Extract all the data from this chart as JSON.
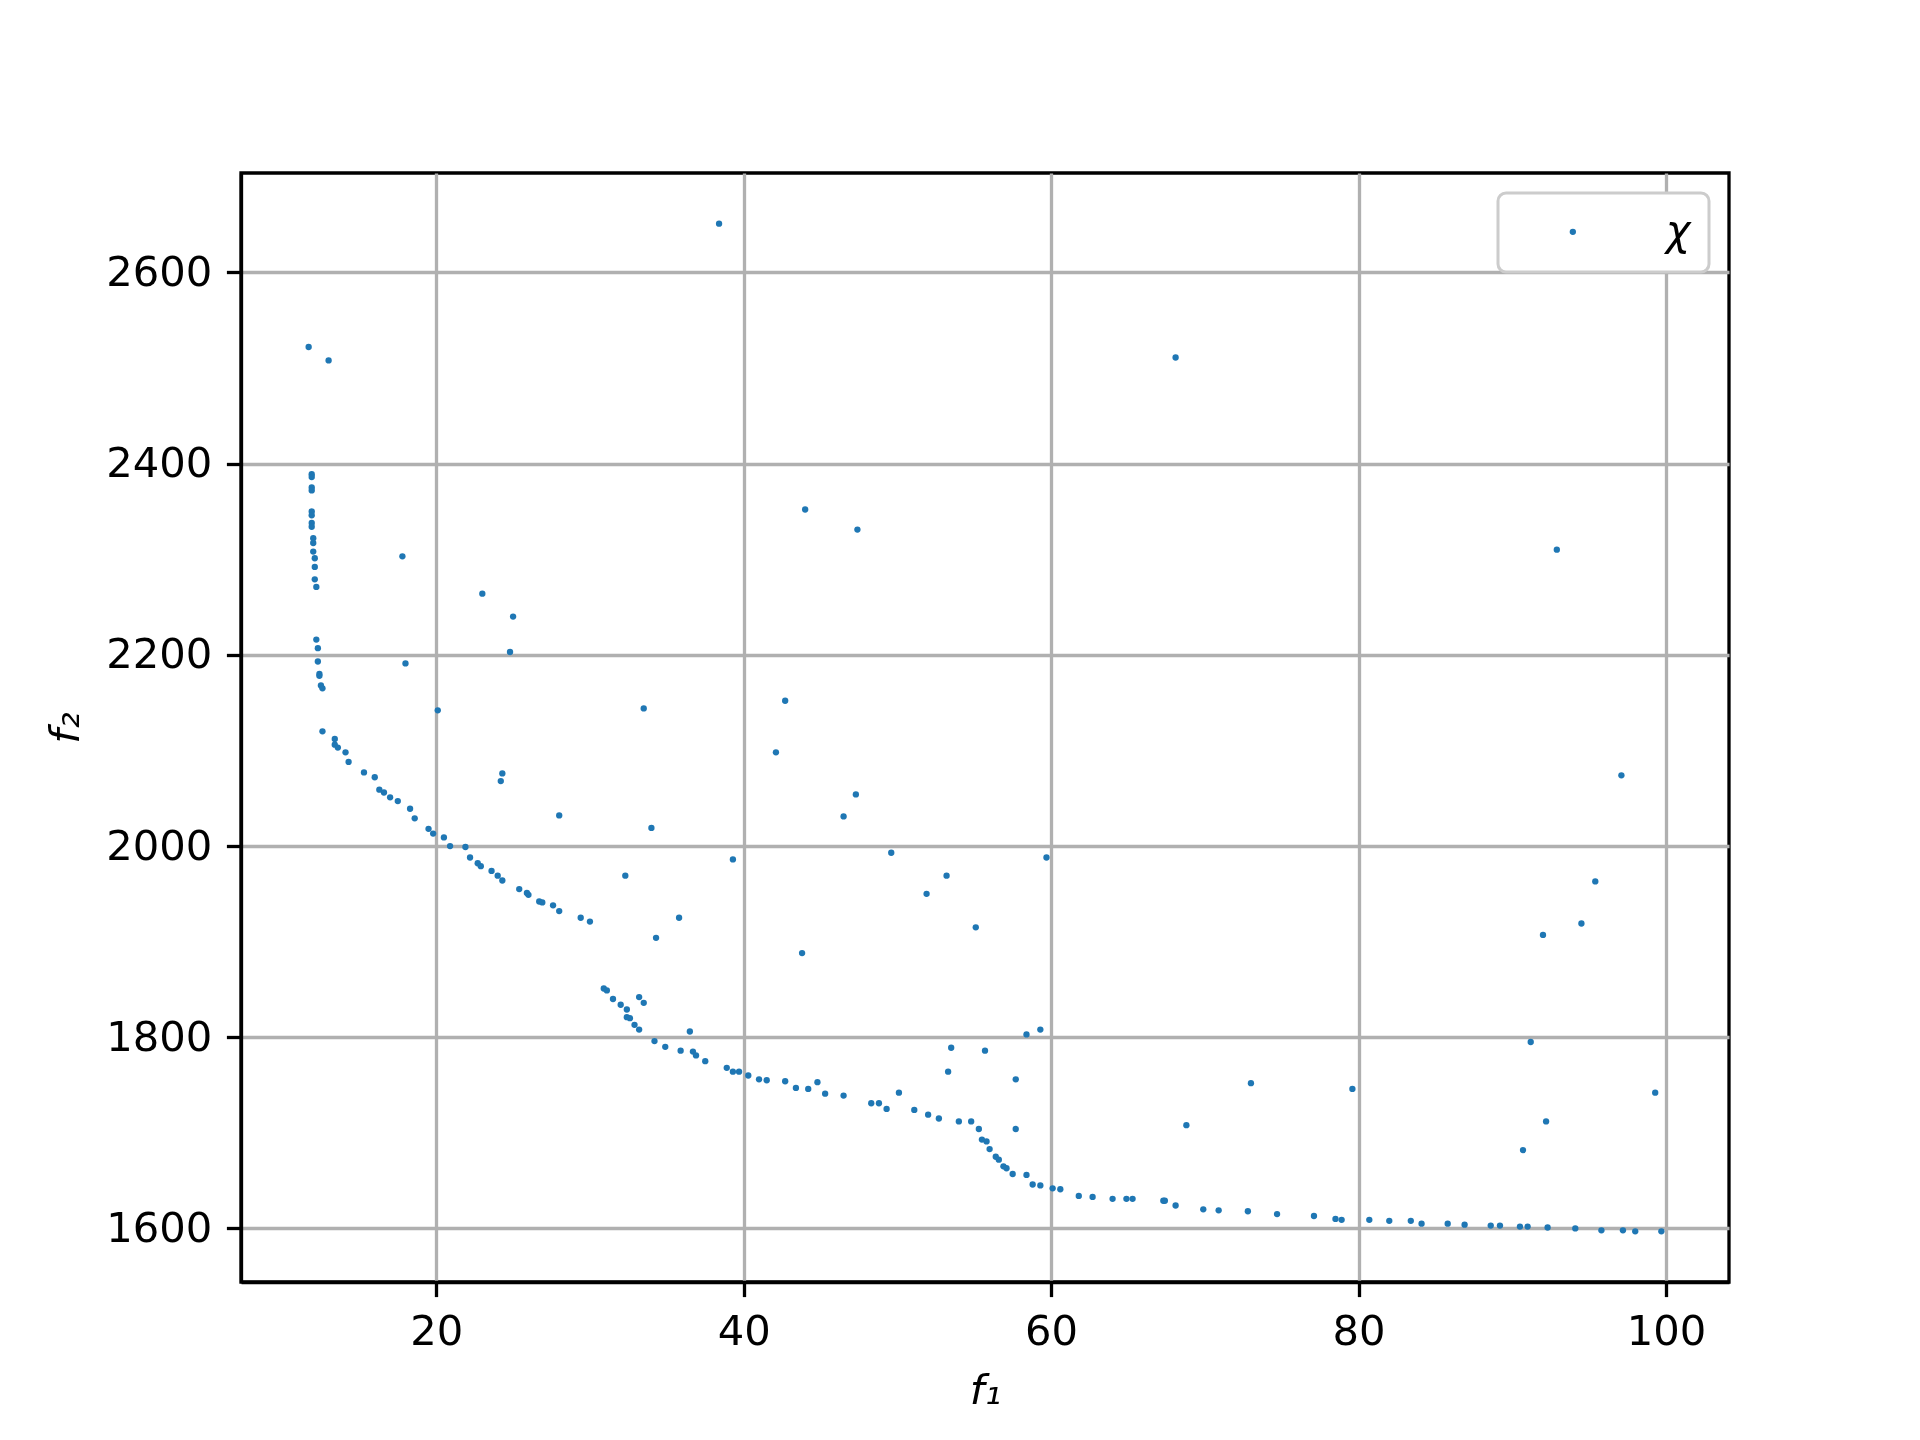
{
  "chart_data": {
    "type": "scatter",
    "xlabel": "f₁",
    "ylabel": "f₂",
    "x": [
      38.4,
      11.7,
      13.0,
      11.9,
      11.9,
      11.9,
      11.9,
      11.9,
      11.9,
      11.9,
      11.9,
      12.0,
      12.0,
      12.0,
      12.1,
      12.1,
      12.1,
      12.2,
      17.8,
      23.0,
      25.0,
      24.8,
      12.2,
      12.3,
      12.3,
      12.4,
      12.4,
      12.5,
      12.6,
      18.0,
      20.1,
      33.5,
      12.6,
      68.1,
      44.0,
      47.4,
      42.7,
      92.9,
      13.4,
      13.4,
      13.6,
      14.1,
      14.3,
      15.3,
      16.0,
      16.3,
      16.6,
      17.0,
      17.5,
      18.3,
      18.6,
      19.5,
      19.8,
      20.5,
      20.9,
      21.9,
      22.2,
      22.7,
      22.9,
      23.6,
      24.0,
      24.3,
      24.3,
      24.2,
      28.0,
      34.0,
      39.3,
      32.3,
      25.4,
      25.9,
      26.0,
      26.7,
      26.9,
      27.6,
      28.0,
      29.4,
      30.0,
      35.8,
      34.3,
      30.9,
      31.1,
      31.5,
      32.0,
      32.4,
      32.4,
      32.6,
      32.9,
      33.2,
      33.2,
      33.5,
      34.2,
      34.9,
      35.9,
      36.5,
      36.7,
      36.9,
      37.5,
      38.9,
      39.3,
      39.7,
      42.1,
      47.3,
      46.5,
      49.6,
      59.7,
      53.2,
      51.9,
      55.1,
      43.8,
      58.4,
      59.3,
      53.5,
      55.7,
      53.3,
      57.7,
      57.7,
      68.8,
      40.3,
      41.0,
      41.5,
      42.7,
      43.4,
      44.2,
      44.8,
      45.3,
      46.5,
      48.3,
      48.8,
      49.3,
      50.1,
      51.1,
      52.0,
      52.7,
      54.0,
      54.8,
      55.3,
      55.5,
      55.8,
      56.0,
      56.4,
      56.6,
      56.9,
      57.1,
      57.5,
      58.4,
      58.8,
      59.3,
      60.1,
      60.6,
      61.8,
      62.7,
      64.0,
      64.9,
      65.3,
      67.3,
      67.4,
      68.1,
      69.9,
      70.9,
      97.1,
      95.4,
      94.5,
      92.0,
      91.2,
      73.0,
      79.6,
      99.3,
      92.2,
      90.7,
      72.8,
      74.7,
      77.1,
      78.5,
      78.9,
      80.7,
      82.0,
      83.4,
      84.1,
      85.8,
      86.9,
      88.6,
      89.2,
      90.5,
      91.0,
      92.3,
      94.1,
      95.8,
      97.2,
      98.0,
      99.7
    ],
    "series": [
      {
        "name": "χ",
        "color": "#1f77b4",
        "values": [
          2651,
          2522,
          2508,
          2389,
          2386,
          2375,
          2372,
          2350,
          2346,
          2338,
          2334,
          2322,
          2317,
          2308,
          2301,
          2292,
          2279,
          2271,
          2303,
          2264,
          2240,
          2203,
          2216,
          2207,
          2193,
          2180,
          2178,
          2168,
          2165,
          2191,
          2142,
          2144,
          2120,
          2511,
          2352,
          2331,
          2152,
          2310,
          2112,
          2106,
          2103,
          2098,
          2088,
          2077,
          2072,
          2059,
          2056,
          2051,
          2047,
          2039,
          2029,
          2018,
          2013,
          2009,
          2000,
          1999,
          1988,
          1982,
          1979,
          1974,
          1969,
          1964,
          2076,
          2068,
          2032,
          2019,
          1986,
          1969,
          1955,
          1951,
          1949,
          1942,
          1941,
          1938,
          1932,
          1925,
          1921,
          1925,
          1904,
          1851,
          1849,
          1840,
          1834,
          1829,
          1821,
          1820,
          1813,
          1808,
          1842,
          1836,
          1796,
          1790,
          1786,
          1806,
          1785,
          1781,
          1775,
          1768,
          1764,
          1764,
          2098,
          2054,
          2031,
          1993,
          1988,
          1969,
          1950,
          1915,
          1888,
          1803,
          1808,
          1789,
          1786,
          1764,
          1756,
          1704,
          1708,
          1760,
          1756,
          1755,
          1754,
          1747,
          1746,
          1753,
          1741,
          1739,
          1731,
          1731,
          1725,
          1742,
          1724,
          1719,
          1715,
          1712,
          1712,
          1704,
          1693,
          1691,
          1683,
          1675,
          1672,
          1665,
          1663,
          1657,
          1656,
          1646,
          1645,
          1642,
          1641,
          1634,
          1633,
          1631,
          1631,
          1631,
          1629,
          1629,
          1624,
          1620,
          1619,
          2074,
          1963,
          1919,
          1907,
          1795,
          1752,
          1746,
          1742,
          1712,
          1682,
          1618,
          1615,
          1613,
          1610,
          1609,
          1609,
          1608,
          1608,
          1605,
          1605,
          1604,
          1603,
          1603,
          1602,
          1602,
          1601,
          1600,
          1598,
          1598,
          1597,
          1597
        ]
      }
    ],
    "xlim": [
      7.3,
      104.1
    ],
    "ylim": [
      1544,
      2704
    ],
    "xticks": [
      20,
      40,
      60,
      80,
      100
    ],
    "yticks": [
      1600,
      1800,
      2000,
      2200,
      2400,
      2600
    ],
    "grid": true,
    "legend": "top right",
    "marker": "circle"
  }
}
